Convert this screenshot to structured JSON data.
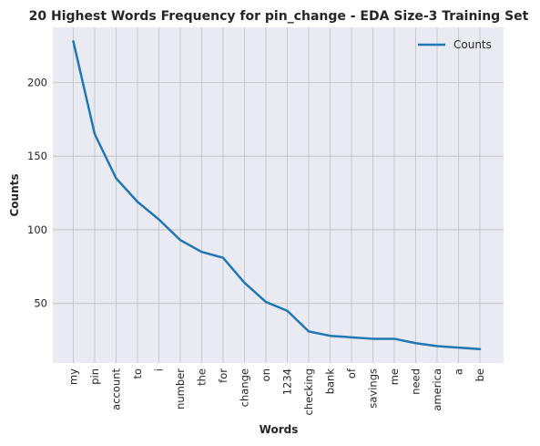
{
  "chart_data": {
    "type": "line",
    "title": "20 Highest Words Frequency for pin_change - EDA Size-3 Training Set",
    "xlabel": "Words",
    "ylabel": "Counts",
    "categories": [
      "my",
      "pin",
      "account",
      "to",
      "i",
      "number",
      "the",
      "for",
      "change",
      "on",
      "1234",
      "checking",
      "bank",
      "of",
      "savings",
      "me",
      "need",
      "america",
      "a",
      "be"
    ],
    "series": [
      {
        "name": "Counts",
        "values": [
          228,
          165,
          135,
          119,
          107,
          93,
          85,
          81,
          64,
          51,
          45,
          31,
          28,
          27,
          26,
          26,
          23,
          21,
          20,
          19
        ],
        "color": "#1f77b4"
      }
    ],
    "yticks": [
      50,
      100,
      150,
      200
    ],
    "ylim": [
      9.55,
      237.45
    ],
    "grid": true,
    "legend_position": "top-right",
    "background_color": "#eaeaf2",
    "grid_color": "#bfbfbf"
  }
}
